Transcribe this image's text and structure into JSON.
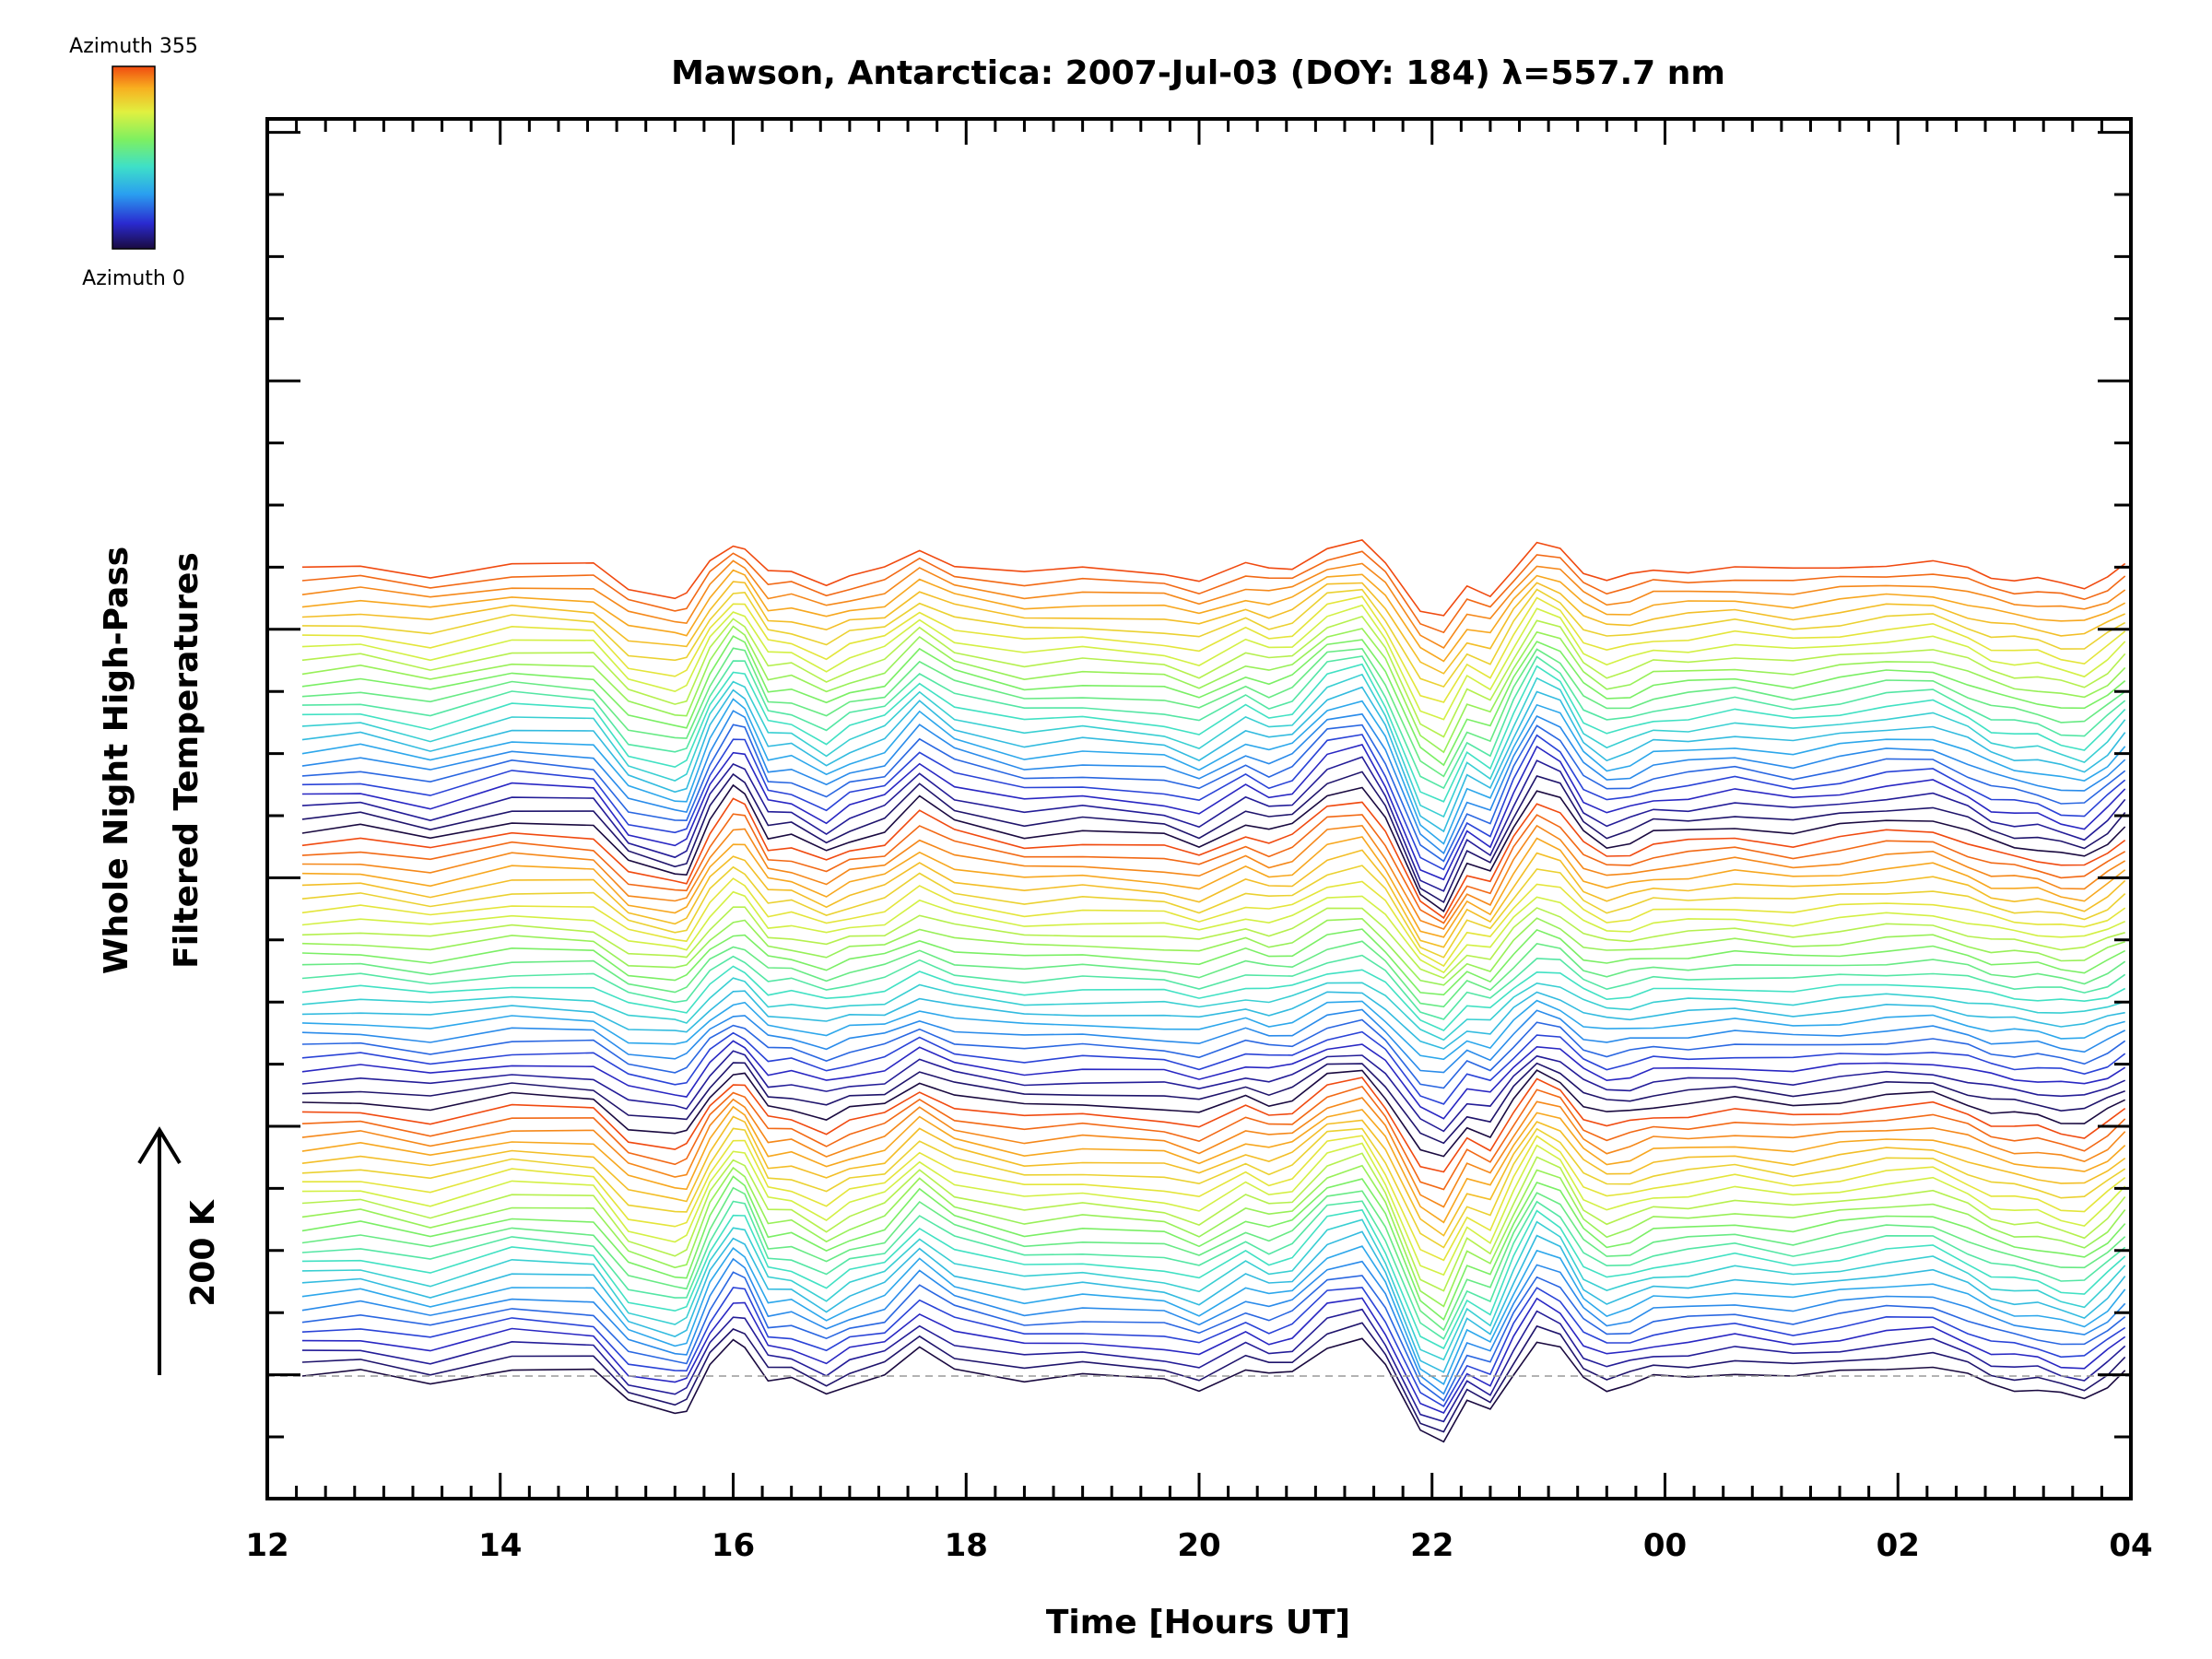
{
  "chart_data": {
    "type": "line",
    "title": "Mawson, Antarctica: 2007-Jul-03 (DOY: 184) λ=557.7 nm",
    "xlabel": "Time [Hours UT]",
    "ylabel_lines": [
      "Whole Night High-Pass",
      "Filtered Temperatures"
    ],
    "scale_bar_label": "200 K",
    "x_ticks": [
      "12",
      "14",
      "16",
      "18",
      "20",
      "22",
      "00",
      "02",
      "04"
    ],
    "x_tick_hours": [
      12,
      14,
      16,
      18,
      20,
      22,
      24,
      26,
      28
    ],
    "xlim_hours": [
      12,
      28
    ],
    "grid": false,
    "legend": {
      "type": "colorbar",
      "position": "top-left",
      "max_label": "Azimuth 355",
      "min_label": "Azimuth 0",
      "colors": [
        "#1a0a40",
        "#2a2ad0",
        "#2a9ff0",
        "#3ee0c8",
        "#7ef060",
        "#e0f040",
        "#f8b020",
        "#f04a10"
      ]
    },
    "series_info": {
      "count": 72,
      "azimuth_start_deg": 0,
      "azimuth_step_deg": 5,
      "vertical_offset_per_series_K": 22,
      "baseline_label": "dashed zero line for first series"
    },
    "base_profile": {
      "x_hours": [
        12.3,
        12.8,
        13.4,
        14.1,
        14.8,
        15.1,
        15.5,
        15.6,
        15.8,
        16.0,
        16.1,
        16.3,
        16.5,
        16.8,
        17.0,
        17.3,
        17.6,
        17.9,
        18.5,
        19.0,
        19.7,
        20.0,
        20.4,
        20.6,
        20.8,
        21.1,
        21.4,
        21.6,
        21.9,
        22.1,
        22.3,
        22.5,
        22.7,
        22.9,
        23.1,
        23.3,
        23.5,
        23.7,
        23.9,
        24.2,
        24.6,
        25.1,
        25.5,
        25.9,
        26.3,
        26.6,
        26.8,
        27.0,
        27.2,
        27.4,
        27.6,
        27.8,
        27.95
      ],
      "temps_K": [
        0,
        4,
        -8,
        10,
        6,
        -30,
        -40,
        -38,
        10,
        40,
        36,
        -5,
        -5,
        -20,
        -8,
        0,
        30,
        10,
        -4,
        0,
        -5,
        -14,
        8,
        0,
        5,
        35,
        42,
        10,
        -60,
        -72,
        -30,
        -40,
        4,
        40,
        30,
        -2,
        -14,
        -10,
        -2,
        0,
        5,
        -2,
        4,
        10,
        12,
        0,
        -10,
        -14,
        -16,
        -22,
        -25,
        -10,
        5
      ]
    }
  }
}
